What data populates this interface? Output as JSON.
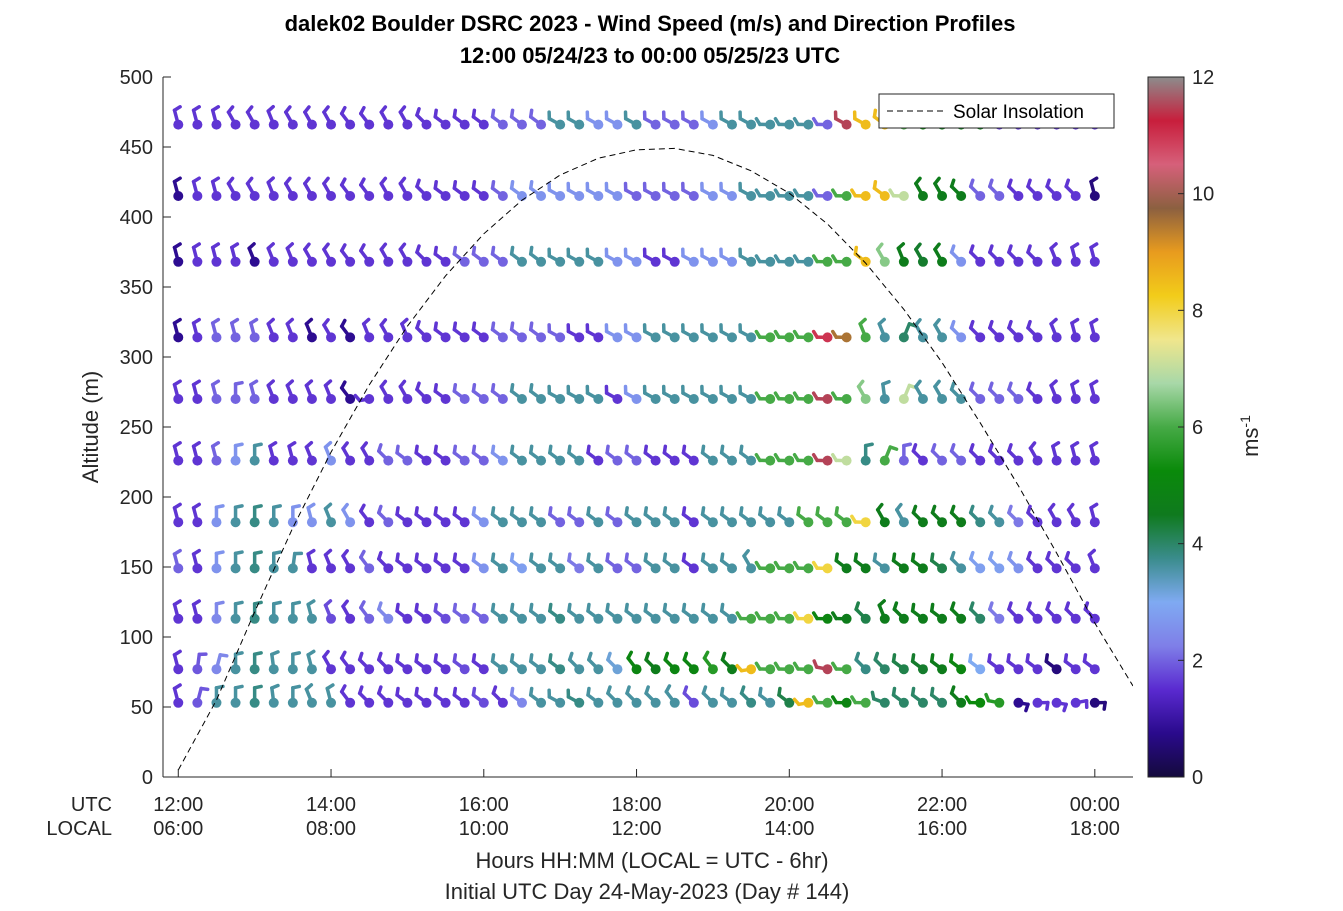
{
  "chart_data": {
    "type": "wind-barb-profile",
    "title": "dalek02 Boulder DSRC 2023 - Wind Speed (m/s) and Direction Profiles",
    "subtitle": "12:00 05/24/23 to 00:00 05/25/23  UTC",
    "ylabel": "Altitude (m)",
    "xlabel": "Hours HH:MM  (LOCAL = UTC - 6hr)",
    "xlabel2": "Initial UTC Day 24-May-2023 (Day # 144)",
    "ylim": [
      0,
      500
    ],
    "yticks": [
      0,
      50,
      100,
      150,
      200,
      250,
      300,
      350,
      400,
      450,
      500
    ],
    "xlim_hours": [
      11.8,
      24.5
    ],
    "xtick_hours": [
      12,
      14,
      16,
      18,
      20,
      22,
      24
    ],
    "xrow_labels": [
      "UTC",
      "LOCAL"
    ],
    "utc_tick_labels": [
      "12:00",
      "14:00",
      "16:00",
      "18:00",
      "20:00",
      "22:00",
      "00:00"
    ],
    "local_tick_labels": [
      "06:00",
      "08:00",
      "10:00",
      "12:00",
      "14:00",
      "16:00",
      "18:00"
    ],
    "legend": {
      "entry": "Solar Insolation",
      "placement": "top-right",
      "style": "dashed"
    },
    "colorbar": {
      "label": "ms-1",
      "range": [
        0,
        12
      ],
      "ticks": [
        0,
        2,
        4,
        6,
        8,
        10,
        12
      ],
      "tick_labels": [
        "0",
        "2",
        "4",
        "6",
        "8",
        "10",
        "12"
      ]
    },
    "altitudes": [
      53,
      77,
      113,
      149,
      182,
      226,
      270,
      314,
      368,
      415,
      466
    ],
    "time_start_hour": 12.0,
    "time_step_hour": 0.25,
    "speeds_ms": [
      [
        1.6,
        1.9,
        3.6,
        3.6,
        3.8,
        3.6,
        3.6,
        3.6,
        3.6,
        1.6,
        1.6,
        1.6,
        1.6,
        1.6,
        1.6,
        1.6,
        1.8,
        1.6,
        2.4,
        3.6,
        3.6,
        3.8,
        3.6,
        3.6,
        3.6,
        3.6,
        3.6,
        1.8,
        3.6,
        3.6,
        3.8,
        3.6,
        4.2,
        8.5,
        6.0,
        5.0,
        6.0,
        4.0,
        4.0,
        4.0,
        4.0,
        4.6,
        5.2,
        5.6,
        0.8,
        1.6,
        1.6,
        1.6,
        0.6
      ],
      [
        1.6,
        1.9,
        2.4,
        3.6,
        3.8,
        3.6,
        3.6,
        3.6,
        1.6,
        1.6,
        1.6,
        1.6,
        1.6,
        1.6,
        1.6,
        1.8,
        1.6,
        3.6,
        3.6,
        3.6,
        3.8,
        3.6,
        3.6,
        3.2,
        5.0,
        4.6,
        5.0,
        5.0,
        5.6,
        4.6,
        8.5,
        6.0,
        6.0,
        6.0,
        11.5,
        6.0,
        3.8,
        4.0,
        4.2,
        4.4,
        4.6,
        5.0,
        3.0,
        1.6,
        1.6,
        1.6,
        0.6,
        1.6,
        1.6
      ],
      [
        1.6,
        1.6,
        2.4,
        3.6,
        3.8,
        3.6,
        3.6,
        3.6,
        1.8,
        1.6,
        2.0,
        2.4,
        1.6,
        1.6,
        1.8,
        2.0,
        2.0,
        3.6,
        3.6,
        3.6,
        3.8,
        3.6,
        3.6,
        3.6,
        3.6,
        3.6,
        3.6,
        3.6,
        3.6,
        3.6,
        6.0,
        6.0,
        6.0,
        8.0,
        5.0,
        4.6,
        4.2,
        4.6,
        4.6,
        4.6,
        4.6,
        4.6,
        4.0,
        2.2,
        1.6,
        1.6,
        1.6,
        1.6,
        1.6
      ],
      [
        2.0,
        1.6,
        2.6,
        3.6,
        3.8,
        3.6,
        3.6,
        1.6,
        1.6,
        1.6,
        2.0,
        1.6,
        1.6,
        1.6,
        1.6,
        1.6,
        2.6,
        3.6,
        2.8,
        3.6,
        3.6,
        2.2,
        3.6,
        2.0,
        2.0,
        3.6,
        3.6,
        1.6,
        3.6,
        3.6,
        3.6,
        6.0,
        6.0,
        6.0,
        8.0,
        4.6,
        4.6,
        3.6,
        4.6,
        4.6,
        4.2,
        3.6,
        2.8,
        2.8,
        2.6,
        1.6,
        1.6,
        1.6,
        1.6
      ],
      [
        1.6,
        1.6,
        2.6,
        3.6,
        3.8,
        3.6,
        2.6,
        2.6,
        3.6,
        2.6,
        1.6,
        2.0,
        1.6,
        1.6,
        1.6,
        1.6,
        2.6,
        3.6,
        3.6,
        3.6,
        2.0,
        2.0,
        3.6,
        2.0,
        3.6,
        3.6,
        3.6,
        1.6,
        3.6,
        3.6,
        3.6,
        3.6,
        3.6,
        6.0,
        6.0,
        6.0,
        8.0,
        4.6,
        3.6,
        4.6,
        4.6,
        4.6,
        3.8,
        3.6,
        2.2,
        1.6,
        1.6,
        1.6,
        1.6
      ],
      [
        1.6,
        1.6,
        2.0,
        2.6,
        3.6,
        1.6,
        1.6,
        1.6,
        2.6,
        1.6,
        1.6,
        2.0,
        2.0,
        1.6,
        1.6,
        2.0,
        2.0,
        2.6,
        3.6,
        3.6,
        3.6,
        3.6,
        1.6,
        2.0,
        2.0,
        1.6,
        1.6,
        1.6,
        3.6,
        3.6,
        3.6,
        6.0,
        6.0,
        6.0,
        11.5,
        7.0,
        3.8,
        6.0,
        2.0,
        1.6,
        2.0,
        2.0,
        1.6,
        1.6,
        1.6,
        1.6,
        1.6,
        1.6,
        1.6
      ],
      [
        1.6,
        1.6,
        2.0,
        2.0,
        2.0,
        1.6,
        1.6,
        1.6,
        1.6,
        0.8,
        1.6,
        1.6,
        1.6,
        1.6,
        1.6,
        2.0,
        2.0,
        2.0,
        3.6,
        3.6,
        3.6,
        3.6,
        3.6,
        1.6,
        2.6,
        3.6,
        3.6,
        3.6,
        3.6,
        3.6,
        3.6,
        6.0,
        6.0,
        6.0,
        11.5,
        6.0,
        6.5,
        3.6,
        7.0,
        3.6,
        3.6,
        3.6,
        2.0,
        2.0,
        2.0,
        1.6,
        1.6,
        1.6,
        1.6
      ],
      [
        0.8,
        1.6,
        2.0,
        2.0,
        2.0,
        1.6,
        1.6,
        0.8,
        1.6,
        0.8,
        1.6,
        1.6,
        1.6,
        1.6,
        1.6,
        1.6,
        1.6,
        2.0,
        2.0,
        2.0,
        2.0,
        1.6,
        1.6,
        2.6,
        2.6,
        3.6,
        3.6,
        3.6,
        3.6,
        3.6,
        3.6,
        6.0,
        6.0,
        6.0,
        11.0,
        9.5,
        6.0,
        3.6,
        4.0,
        3.6,
        3.6,
        2.6,
        1.6,
        1.6,
        1.6,
        1.6,
        1.6,
        1.6,
        1.6
      ],
      [
        0.8,
        1.6,
        1.6,
        1.6,
        0.8,
        1.6,
        1.6,
        1.6,
        1.6,
        1.6,
        1.6,
        1.6,
        1.6,
        1.6,
        1.6,
        2.0,
        2.0,
        2.0,
        3.6,
        3.6,
        3.6,
        3.6,
        3.6,
        2.6,
        2.6,
        1.6,
        1.6,
        2.6,
        2.6,
        2.6,
        3.6,
        3.6,
        3.6,
        3.6,
        6.0,
        6.0,
        8.5,
        6.5,
        4.6,
        4.4,
        4.6,
        2.6,
        1.6,
        1.6,
        1.6,
        1.6,
        1.6,
        1.6,
        1.6
      ],
      [
        0.8,
        1.6,
        1.6,
        1.6,
        1.6,
        1.6,
        1.6,
        1.6,
        1.6,
        1.6,
        1.6,
        1.6,
        1.6,
        1.6,
        1.6,
        1.6,
        1.6,
        2.0,
        2.6,
        2.6,
        2.6,
        2.6,
        2.6,
        2.6,
        2.0,
        2.0,
        2.0,
        2.0,
        2.6,
        2.6,
        3.6,
        3.6,
        3.6,
        3.6,
        2.0,
        6.0,
        8.5,
        8.5,
        7.0,
        4.6,
        4.6,
        4.6,
        2.0,
        2.0,
        1.6,
        1.6,
        1.6,
        1.6,
        0.6
      ],
      [
        1.6,
        1.6,
        1.6,
        1.6,
        1.6,
        1.6,
        1.6,
        1.6,
        1.6,
        1.6,
        1.6,
        1.6,
        1.6,
        1.6,
        1.6,
        1.6,
        1.6,
        2.0,
        2.0,
        2.0,
        3.6,
        3.6,
        2.6,
        2.6,
        3.6,
        2.0,
        2.0,
        2.0,
        2.6,
        3.6,
        3.6,
        3.6,
        3.6,
        3.6,
        2.0,
        11.5,
        8.5,
        8.5,
        6.0,
        5.0,
        4.6,
        4.6,
        4.6,
        1.6,
        1.6,
        1.6,
        1.6,
        1.6,
        1.6
      ]
    ],
    "directions_deg": [
      [
        340,
        20,
        0,
        0,
        0,
        350,
        0,
        330,
        340,
        310,
        300,
        300,
        290,
        290,
        290,
        290,
        290,
        300,
        290,
        290,
        280,
        280,
        290,
        300,
        300,
        300,
        310,
        300,
        300,
        290,
        300,
        290,
        290,
        240,
        250,
        250,
        250,
        270,
        290,
        290,
        290,
        300,
        250,
        260,
        120,
        110,
        120,
        100,
        110
      ],
      [
        340,
        10,
        20,
        0,
        0,
        350,
        0,
        340,
        320,
        310,
        300,
        300,
        290,
        290,
        290,
        290,
        290,
        290,
        290,
        290,
        290,
        300,
        300,
        300,
        310,
        300,
        300,
        300,
        310,
        300,
        240,
        250,
        250,
        250,
        260,
        250,
        300,
        300,
        290,
        290,
        290,
        290,
        290,
        290,
        290,
        290,
        290,
        290,
        290
      ],
      [
        340,
        340,
        0,
        0,
        0,
        0,
        0,
        340,
        330,
        320,
        310,
        300,
        290,
        290,
        290,
        290,
        290,
        290,
        290,
        290,
        290,
        290,
        290,
        290,
        290,
        290,
        290,
        290,
        290,
        290,
        250,
        250,
        250,
        250,
        250,
        250,
        300,
        330,
        300,
        290,
        290,
        300,
        300,
        300,
        300,
        300,
        300,
        300,
        300
      ],
      [
        340,
        340,
        0,
        0,
        0,
        0,
        10,
        340,
        330,
        320,
        310,
        300,
        290,
        290,
        290,
        290,
        290,
        290,
        290,
        290,
        290,
        290,
        290,
        290,
        290,
        290,
        290,
        290,
        290,
        290,
        320,
        250,
        250,
        250,
        250,
        290,
        290,
        290,
        290,
        290,
        290,
        300,
        300,
        300,
        300,
        300,
        300,
        300,
        330
      ],
      [
        340,
        340,
        0,
        0,
        0,
        0,
        0,
        340,
        330,
        320,
        310,
        300,
        290,
        290,
        290,
        290,
        290,
        290,
        290,
        290,
        290,
        290,
        290,
        290,
        290,
        290,
        290,
        290,
        290,
        290,
        290,
        290,
        290,
        290,
        290,
        290,
        250,
        320,
        320,
        300,
        300,
        300,
        300,
        300,
        300,
        300,
        320,
        320,
        340
      ],
      [
        340,
        340,
        340,
        0,
        0,
        340,
        340,
        330,
        330,
        320,
        320,
        300,
        290,
        290,
        290,
        290,
        290,
        290,
        290,
        290,
        290,
        290,
        290,
        290,
        290,
        290,
        290,
        290,
        290,
        290,
        290,
        250,
        250,
        250,
        250,
        250,
        0,
        30,
        0,
        300,
        300,
        300,
        300,
        300,
        300,
        320,
        340,
        340,
        340
      ],
      [
        340,
        340,
        340,
        0,
        340,
        330,
        330,
        330,
        330,
        310,
        240,
        320,
        320,
        300,
        290,
        290,
        290,
        290,
        290,
        290,
        280,
        280,
        280,
        280,
        280,
        280,
        280,
        280,
        280,
        280,
        280,
        250,
        250,
        250,
        250,
        250,
        320,
        350,
        30,
        320,
        320,
        300,
        300,
        300,
        300,
        300,
        330,
        340,
        340
      ],
      [
        340,
        340,
        340,
        340,
        340,
        330,
        330,
        330,
        320,
        310,
        330,
        320,
        330,
        300,
        290,
        290,
        290,
        290,
        290,
        290,
        280,
        280,
        280,
        280,
        280,
        280,
        280,
        280,
        280,
        280,
        280,
        250,
        250,
        250,
        250,
        250,
        330,
        330,
        30,
        320,
        320,
        300,
        300,
        300,
        300,
        300,
        330,
        340,
        340
      ],
      [
        340,
        340,
        340,
        340,
        330,
        330,
        330,
        320,
        320,
        310,
        310,
        320,
        320,
        300,
        290,
        290,
        290,
        290,
        290,
        290,
        280,
        280,
        280,
        280,
        280,
        280,
        280,
        280,
        280,
        280,
        280,
        250,
        250,
        250,
        250,
        250,
        290,
        320,
        330,
        320,
        320,
        300,
        300,
        300,
        300,
        300,
        330,
        340,
        340
      ],
      [
        340,
        340,
        340,
        320,
        320,
        330,
        320,
        320,
        320,
        310,
        310,
        320,
        320,
        300,
        290,
        290,
        290,
        290,
        290,
        290,
        280,
        280,
        280,
        280,
        280,
        280,
        280,
        280,
        280,
        280,
        280,
        250,
        250,
        250,
        250,
        250,
        250,
        290,
        250,
        320,
        320,
        300,
        300,
        300,
        300,
        300,
        300,
        300,
        340
      ],
      [
        340,
        340,
        340,
        320,
        320,
        330,
        320,
        320,
        320,
        310,
        310,
        320,
        320,
        300,
        290,
        290,
        290,
        290,
        290,
        290,
        280,
        280,
        280,
        280,
        280,
        280,
        280,
        280,
        280,
        280,
        280,
        250,
        250,
        250,
        250,
        280,
        280,
        290,
        300,
        320,
        320,
        300,
        300,
        300,
        300,
        300,
        330,
        340,
        340
      ]
    ],
    "insolation_curve": {
      "x_hours": [
        12.0,
        12.5,
        13.0,
        13.5,
        14.0,
        14.5,
        15.0,
        15.5,
        16.0,
        16.5,
        17.0,
        17.5,
        18.0,
        18.5,
        19.0,
        19.5,
        20.0,
        20.5,
        21.0,
        21.5,
        22.0,
        22.5,
        23.0,
        23.5,
        24.0,
        24.5
      ],
      "y_altitude": [
        5,
        55,
        118,
        178,
        232,
        280,
        322,
        358,
        388,
        412,
        430,
        442,
        448,
        449,
        444,
        433,
        417,
        395,
        367,
        334,
        296,
        253,
        208,
        160,
        110,
        65
      ]
    }
  },
  "colors": {
    "axis": "#262626",
    "curve": "#000000",
    "colorbar_stops": [
      "#140a3c",
      "#2a0a8c",
      "#5a2ad0",
      "#7f7fe8",
      "#7faaf2",
      "#3a8c8c",
      "#0f7a1e",
      "#0a8a0a",
      "#46aa46",
      "#a8d8a8",
      "#f0e68c",
      "#f2cc1a",
      "#e89b1e",
      "#8c6040",
      "#d6607a",
      "#c81e3c",
      "#8c8c8c"
    ]
  }
}
